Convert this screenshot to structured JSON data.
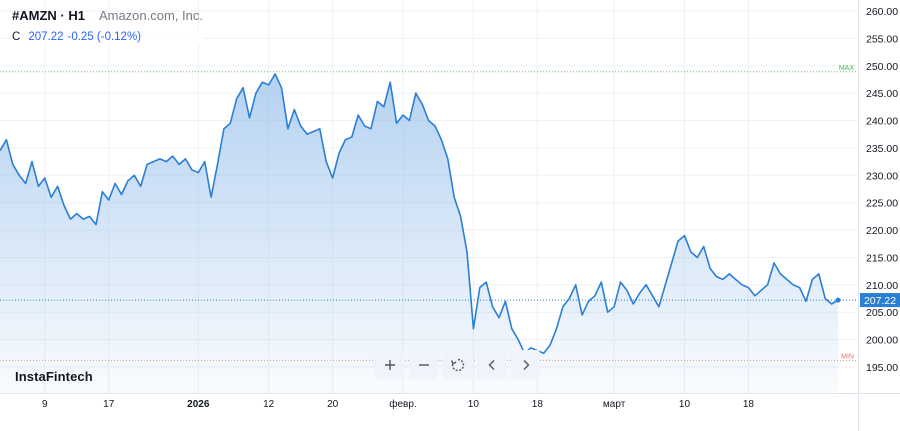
{
  "header": {
    "symbol": "#AMZN · H1",
    "company": "Amazon.com, Inc.",
    "ohlc_label": "C",
    "close_value": "207.22",
    "change": "-0.25 (-0.12%)"
  },
  "brand": "InstaFintech",
  "toolbar": {
    "zoom_in_icon": "plus-icon",
    "zoom_out_icon": "minus-icon",
    "reset_icon": "reset-icon",
    "prev_icon": "chevron-left-icon",
    "next_icon": "chevron-right-icon"
  },
  "colors": {
    "line": "#2a7fd4",
    "area_top": "#9cc3ec",
    "price_tag": "#2a7fd4",
    "max_line": "#4caf50",
    "min_line": "#e57373",
    "grid": "#eef0f3",
    "axis_text": "#131722"
  },
  "chart_data": {
    "type": "area",
    "title": "",
    "xlabel": "",
    "ylabel": "",
    "y_ticks": [
      "260.00",
      "255.00",
      "250.00",
      "245.00",
      "240.00",
      "235.00",
      "230.00",
      "225.00",
      "220.00",
      "215.00",
      "210.00",
      "205.00",
      "200.00",
      "195.00"
    ],
    "ylim": [
      192.5,
      262
    ],
    "x_ticks": [
      "9",
      "17",
      "2026",
      "12",
      "20",
      "февр.",
      "10",
      "18",
      "март",
      "10",
      "18"
    ],
    "x_tick_index": [
      7,
      17,
      31,
      42,
      52,
      63,
      74,
      84,
      96,
      107,
      117
    ],
    "last_price_label": "207.22",
    "last_price": 207.22,
    "max_label": "MAX",
    "max_value": 248.9,
    "min_label": "MIN",
    "min_value": 196.2,
    "grid": true,
    "series": [
      {
        "values": [
          234.5,
          236.5,
          232,
          230,
          228.5,
          232.5,
          228,
          229.5,
          226,
          228,
          224.5,
          222,
          223,
          222,
          222.5,
          221,
          227,
          225.5,
          228.5,
          226.5,
          229,
          230,
          228,
          232,
          232.5,
          233,
          232.5,
          233.5,
          232,
          233,
          231,
          230.5,
          232.5,
          226,
          232,
          238.5,
          239.5,
          244,
          246,
          240.5,
          245,
          247,
          246.5,
          248.5,
          246,
          238.5,
          242,
          239,
          237.5,
          238,
          238.5,
          232.5,
          229.5,
          234,
          236.5,
          237,
          241,
          239,
          238.5,
          243.5,
          242.5,
          247,
          239.5,
          241,
          240,
          245,
          243,
          240,
          239,
          236.5,
          233,
          226,
          222.5,
          216,
          202,
          209.5,
          210.5,
          206,
          204,
          207,
          202,
          200,
          197.5,
          198.5,
          198,
          197.5,
          199,
          202,
          206,
          207.5,
          210,
          204.5,
          207,
          208,
          210.5,
          205,
          206,
          210.5,
          209,
          206.5,
          208.5,
          210,
          208,
          206,
          210,
          214,
          218,
          219,
          216,
          215,
          217,
          213,
          211.5,
          211,
          212,
          211,
          210,
          209.5,
          208,
          209,
          210,
          214,
          212,
          211,
          210,
          209.5,
          207,
          211,
          212,
          207.5,
          206.5,
          207.2
        ]
      }
    ]
  }
}
